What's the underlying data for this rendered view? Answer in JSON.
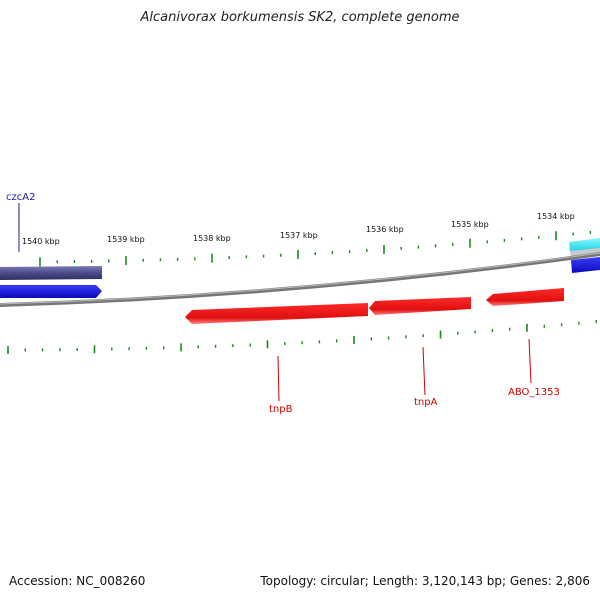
{
  "title": "Alcanivorax borkumensis SK2, complete genome",
  "footer": {
    "accession": "Accession: NC_008260",
    "summary": "Topology: circular; Length: 3,120,143 bp; Genes: 2,806"
  },
  "scale_labels": [
    "1540 kbp",
    "1539 kbp",
    "1538 kbp",
    "1537 kbp",
    "1536 kbp",
    "1535 kbp",
    "1534 kbp"
  ],
  "gene_labels": [
    {
      "text": "czcA2",
      "color": "#1a1aa0"
    },
    {
      "text": "tnpB",
      "color": "#cc0000"
    },
    {
      "text": "tnpA",
      "color": "#cc0000"
    },
    {
      "text": "ABO_1353",
      "color": "#cc0000"
    }
  ],
  "colors": {
    "forward_gene_dark": "#4b4b8a",
    "forward_gene_blue": "#1010e0",
    "reverse_gene": "#ee1111",
    "cyan_gene": "#33e6ee",
    "backbone": "#888888",
    "tick": "#1a8a1a"
  }
}
